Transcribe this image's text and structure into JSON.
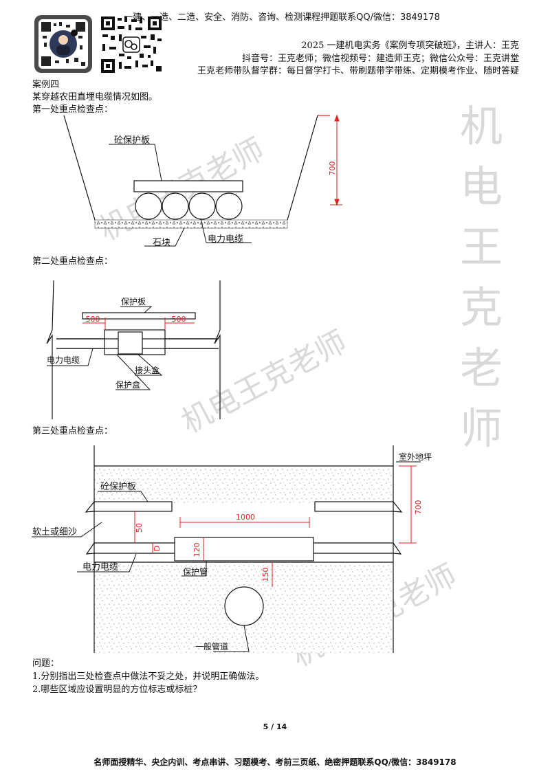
{
  "header": {
    "line1": "一建、一造、二造、安全、消防、咨询、检测课程押题联系QQ/微信：3849178",
    "line2": "2025 一建机电实务《案例专项突破班》，主讲人：王克",
    "line3": "抖音号：王克老师；微信视频号：建造师王克；微信公众号：王克讲堂",
    "line4": "王克老师带队督学群：每日督学打卡、带刷题带学带练、定期模考作业、随时答疑"
  },
  "case": {
    "title": "案例四",
    "intro": "某穿越农田直埋电缆情况如图。",
    "point1": "第一处重点检查点：",
    "point2": "第二处重点检查点：",
    "point3": "第三处重点检查点："
  },
  "fig1": {
    "plate": "砼保护板",
    "stone": "石块",
    "cable": "电力电缆",
    "dim": "700"
  },
  "fig2": {
    "plate": "保护板",
    "dimL": "500",
    "dimR": "500",
    "cable": "电力电缆",
    "joint": "接头盒",
    "box": "保护盒"
  },
  "fig3": {
    "ground": "室外地坪",
    "plate": "砼保护板",
    "sand": "软土或细沙",
    "cable": "电力电缆",
    "pipe": "保护管",
    "general": "一般管道",
    "d1000": "1000",
    "d700": "700",
    "d50": "50",
    "d120": "120",
    "d150": "150",
    "dD": "D"
  },
  "questions": {
    "title": "问题：",
    "q1": "1.分别指出三处检查点中做法不妥之处，并说明正确做法。",
    "q2": "2.哪些区域应设置明显的方位标志或标桩？"
  },
  "page": "5 / 14",
  "footer": "名师面授精华、央企内训、考点串讲、习题模考、考前三页纸、绝密押题联系QQ/微信：3849178",
  "watermark": {
    "big": "机电王克老师",
    "vertical": [
      "机",
      "电",
      "王",
      "克",
      "老",
      "师"
    ]
  }
}
